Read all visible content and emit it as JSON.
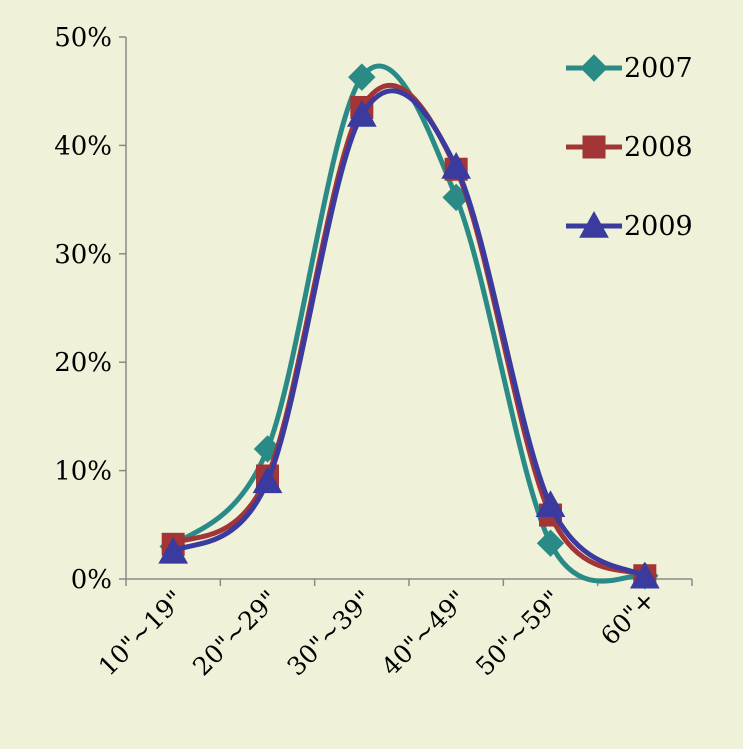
{
  "chart_data": {
    "type": "line",
    "categories": [
      "10\"~19\"",
      "20\"~29\"",
      "30\"~39\"",
      "40\"~49\"",
      "50\"~59\"",
      "60\"+"
    ],
    "series": [
      {
        "name": "2007",
        "values": [
          3.0,
          12.0,
          46.3,
          35.2,
          3.3,
          0.3
        ],
        "color": "#2a8a86",
        "marker": "diamond"
      },
      {
        "name": "2008",
        "values": [
          3.2,
          9.5,
          43.5,
          37.8,
          5.9,
          0.3
        ],
        "color": "#a23535",
        "marker": "square"
      },
      {
        "name": "2009",
        "values": [
          2.5,
          9.0,
          42.8,
          38.0,
          6.8,
          0.2
        ],
        "color": "#3b3a9e",
        "marker": "triangle"
      }
    ],
    "yticks": [
      "0%",
      "10%",
      "20%",
      "30%",
      "40%",
      "50%"
    ],
    "ylim": [
      0,
      50
    ],
    "grid": false,
    "legend": "top-right",
    "smooth": true
  },
  "colors": {
    "background": "#eff1d9",
    "axis": "#8a8a8a"
  }
}
